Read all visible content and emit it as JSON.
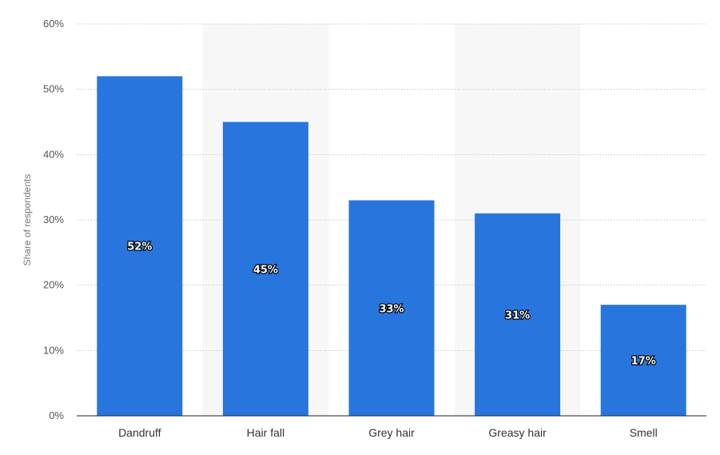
{
  "chart_data": {
    "type": "bar",
    "categories": [
      "Dandruff",
      "Hair fall",
      "Grey hair",
      "Greasy hair",
      "Smell"
    ],
    "values": [
      52,
      45,
      33,
      31,
      17
    ],
    "data_labels": [
      "52%",
      "45%",
      "33%",
      "31%",
      "17%"
    ],
    "ylabel": "Share of respondents",
    "xlabel": "",
    "ylim": [
      0,
      60
    ],
    "yticks": [
      "0%",
      "10%",
      "20%",
      "30%",
      "40%",
      "50%",
      "60%"
    ],
    "grid": true,
    "bar_color": "#2876dd",
    "alt_band_color": "#f7f7f7"
  }
}
